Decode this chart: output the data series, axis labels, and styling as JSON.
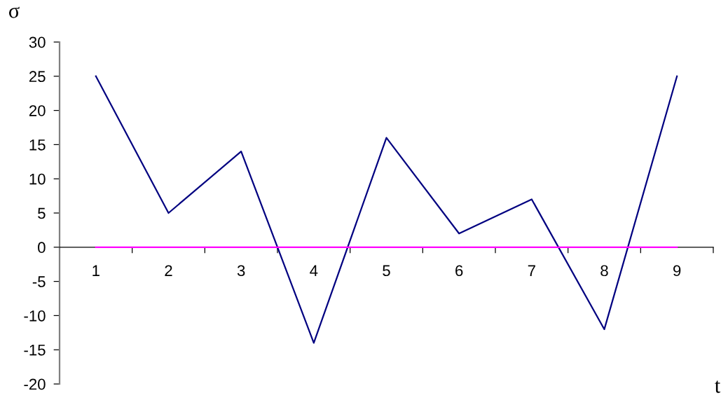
{
  "chart_data": {
    "type": "line",
    "xlabel": "t",
    "ylabel": "σ",
    "categories": [
      "1",
      "2",
      "3",
      "4",
      "5",
      "6",
      "7",
      "8",
      "9"
    ],
    "series": [
      {
        "color": "#000080",
        "values": [
          25,
          5,
          14,
          -14,
          16,
          2,
          7,
          -12,
          25
        ]
      },
      {
        "color": "#ff00ff",
        "values": [
          0,
          0,
          0,
          0,
          0,
          0,
          0,
          0,
          0
        ]
      }
    ],
    "ylim": [
      -20,
      30
    ],
    "yticks": [
      -20,
      -15,
      -10,
      -5,
      0,
      5,
      10,
      15,
      20,
      25,
      30
    ],
    "line_style": "solid"
  }
}
